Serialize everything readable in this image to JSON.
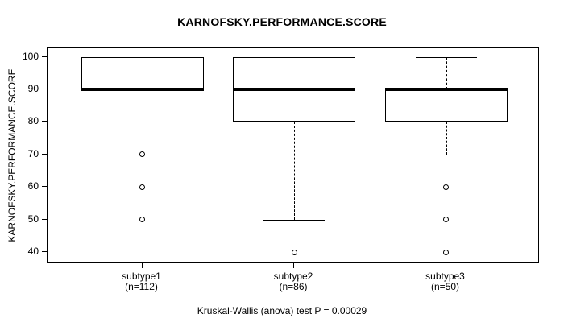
{
  "chart_data": {
    "type": "boxplot",
    "title": "KARNOFSKY.PERFORMANCE.SCORE",
    "ylabel": "KARNOFSKY.PERFORMANCE.SCORE",
    "xlabel": "",
    "caption": "Kruskal-Wallis (anova) test P = 0.00029",
    "yticks": [
      40,
      50,
      60,
      70,
      80,
      90,
      100
    ],
    "ylim": [
      36.4,
      102.6
    ],
    "grid": false,
    "categories": [
      "subtype1",
      "subtype2",
      "subtype3"
    ],
    "category_sublabels": [
      "(n=112)",
      "(n=86)",
      "(n=50)"
    ],
    "series": [
      {
        "name": "subtype1",
        "n": 112,
        "whisker_low": 80,
        "q1": 90,
        "median": 90,
        "q3": 100,
        "whisker_high": 100,
        "outliers": [
          70,
          60,
          50
        ]
      },
      {
        "name": "subtype2",
        "n": 86,
        "whisker_low": 50,
        "q1": 80,
        "median": 90,
        "q3": 100,
        "whisker_high": 100,
        "outliers": [
          40
        ]
      },
      {
        "name": "subtype3",
        "n": 50,
        "whisker_low": 70,
        "q1": 80,
        "median": 90,
        "q3": 90,
        "whisker_high": 100,
        "outliers": [
          60,
          50,
          40
        ]
      }
    ],
    "colors": {
      "line": "#000000",
      "background": "#ffffff"
    }
  }
}
